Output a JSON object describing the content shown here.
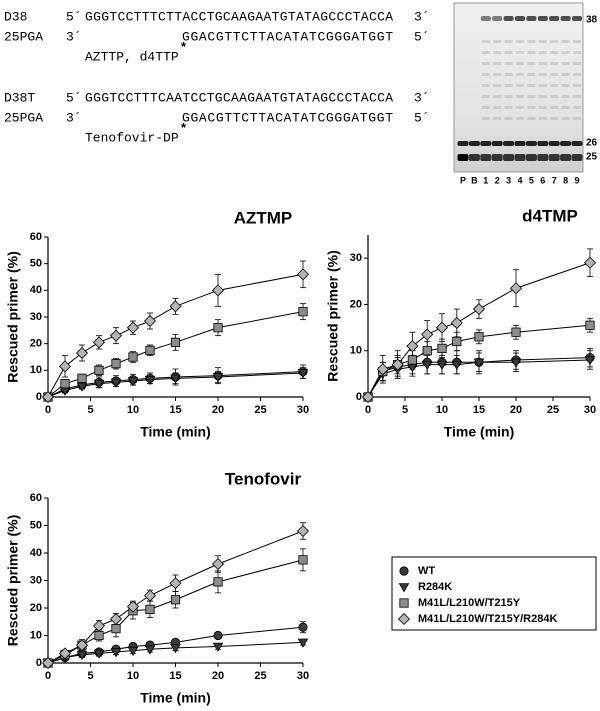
{
  "sequences": [
    {
      "template": {
        "name": "D38",
        "end5": "5´",
        "seq": "GGGTCCTTTCTTACCTGCAAGAATGTATAGCCCTACCA",
        "end3": "3´"
      },
      "primer": {
        "name": "25PGA",
        "end3": "3´",
        "seq": "GGACGTTCTTACATATCGGGATGGT",
        "end5": "5´"
      },
      "substrate": "AZTTP, d4TTP",
      "mark": "*"
    },
    {
      "template": {
        "name": "D38T",
        "end5": "5´",
        "seq": "GGGTCCTTTCAATCCTGCAAGAATGTATAGCCCTACCA",
        "end3": "3´"
      },
      "primer": {
        "name": "25PGA",
        "end3": "3´",
        "seq": "GGACGTTCTTACATATCGGGATGGT",
        "end5": "5´"
      },
      "substrate": "Tenofovir-DP",
      "mark": "*"
    }
  ],
  "gel": {
    "lanes": [
      "P",
      "B",
      "1",
      "2",
      "3",
      "4",
      "5",
      "6",
      "7",
      "8",
      "9"
    ],
    "markers": [
      "38",
      "26",
      "25"
    ]
  },
  "chart_data": [
    {
      "type": "line",
      "title": "AZTMP",
      "xlabel": "Time (min)",
      "ylabel": "Rescued primer (%)",
      "x": [
        0,
        2,
        4,
        6,
        8,
        10,
        12,
        15,
        20,
        30
      ],
      "xlim": [
        0,
        30
      ],
      "xticks": [
        0,
        5,
        10,
        15,
        20,
        25,
        30
      ],
      "ylim": [
        0,
        60
      ],
      "yticks": [
        0,
        10,
        20,
        30,
        40,
        50,
        60
      ],
      "series": [
        {
          "name": "WT",
          "color": "#3a3a3a",
          "marker": "circle",
          "values": [
            0,
            3,
            4.5,
            5.5,
            6,
            6.5,
            7,
            7.5,
            8,
            9.5
          ],
          "errors": [
            0,
            1,
            1.5,
            2,
            2,
            2,
            2,
            3,
            3,
            2.5
          ]
        },
        {
          "name": "R284K",
          "color": "#3a3a3a",
          "marker": "triangle-down",
          "values": [
            0,
            2.5,
            4,
            5,
            5.5,
            6,
            6.5,
            7,
            7.5,
            9
          ],
          "errors": [
            0,
            1,
            1,
            1.5,
            1.5,
            1.5,
            1.5,
            2,
            2,
            2
          ]
        },
        {
          "name": "M41L/L210W/T215Y",
          "color": "#8c8c8c",
          "marker": "square",
          "values": [
            0,
            5,
            7,
            10,
            12.5,
            15,
            17.5,
            20.5,
            26,
            32
          ],
          "errors": [
            0,
            1.5,
            1.5,
            2,
            2,
            2,
            2,
            3,
            3,
            3
          ]
        },
        {
          "name": "M41L/L210W/T215Y/R284K",
          "color": "#b4b4b4",
          "marker": "diamond",
          "values": [
            0,
            11.5,
            16.5,
            20.5,
            23,
            26,
            28.5,
            34,
            40,
            46
          ],
          "errors": [
            0,
            4,
            3,
            2.5,
            3,
            2.5,
            3,
            3,
            6,
            5
          ]
        }
      ]
    },
    {
      "type": "line",
      "title": "d4TMP",
      "xlabel": "Time (min)",
      "ylabel": "Rescued primer (%)",
      "x": [
        0,
        2,
        4,
        6,
        8,
        10,
        12,
        15,
        20,
        30
      ],
      "xlim": [
        0,
        30
      ],
      "xticks": [
        0,
        5,
        10,
        15,
        20,
        25,
        30
      ],
      "ylim": [
        0,
        35
      ],
      "yticks": [
        0,
        10,
        20,
        30
      ],
      "series": [
        {
          "name": "WT",
          "color": "#3a3a3a",
          "marker": "circle",
          "values": [
            0,
            5.5,
            6.5,
            7,
            7.5,
            7.5,
            7.5,
            7.5,
            8,
            8.5
          ],
          "errors": [
            0,
            2,
            2,
            2,
            2.5,
            2.5,
            2.5,
            2.5,
            2,
            2
          ]
        },
        {
          "name": "R284K",
          "color": "#3a3a3a",
          "marker": "triangle-down",
          "values": [
            0,
            5,
            6,
            6.5,
            7,
            7,
            7,
            7.5,
            7.5,
            8
          ],
          "errors": [
            0,
            1.5,
            1.5,
            2,
            2,
            2,
            2,
            2,
            2,
            2
          ]
        },
        {
          "name": "M41L/L210W/T215Y",
          "color": "#8c8c8c",
          "marker": "square",
          "values": [
            0,
            5.5,
            7,
            8,
            10,
            10.5,
            12,
            13,
            14,
            15.5
          ],
          "errors": [
            0,
            2,
            2,
            2,
            2,
            2,
            2,
            1.5,
            1.5,
            1.5
          ]
        },
        {
          "name": "M41L/L210W/T215Y/R284K",
          "color": "#b4b4b4",
          "marker": "diamond",
          "values": [
            0,
            6,
            7,
            11,
            13.5,
            15,
            16,
            19,
            23.5,
            29
          ],
          "errors": [
            0,
            3,
            3,
            3,
            3,
            3,
            3,
            2,
            4,
            3
          ]
        }
      ]
    },
    {
      "type": "line",
      "title": "Tenofovir",
      "xlabel": "Time (min)",
      "ylabel": "Rescued primer (%)",
      "x": [
        0,
        2,
        4,
        6,
        8,
        10,
        12,
        15,
        20,
        30
      ],
      "xlim": [
        0,
        30
      ],
      "xticks": [
        0,
        5,
        10,
        15,
        20,
        25,
        30
      ],
      "ylim": [
        0,
        60
      ],
      "yticks": [
        0,
        10,
        20,
        30,
        40,
        50,
        60
      ],
      "series": [
        {
          "name": "WT",
          "color": "#3a3a3a",
          "marker": "circle",
          "values": [
            0,
            2,
            3.5,
            4,
            5,
            6,
            6.5,
            7.5,
            10,
            13
          ],
          "errors": [
            0,
            1,
            1,
            1,
            1,
            1,
            1,
            1,
            1,
            2
          ]
        },
        {
          "name": "R284K",
          "color": "#3a3a3a",
          "marker": "triangle-down",
          "values": [
            0,
            2,
            3,
            3.5,
            4,
            4.5,
            5,
            5.5,
            6,
            7.5
          ],
          "errors": [
            0,
            1,
            1,
            1,
            1,
            1,
            1,
            1,
            1,
            1
          ]
        },
        {
          "name": "M41L/L210W/T215Y",
          "color": "#8c8c8c",
          "marker": "square",
          "values": [
            0,
            3,
            6.5,
            10,
            12.5,
            19,
            19.5,
            23,
            29.5,
            37.5
          ],
          "errors": [
            0,
            1,
            2,
            2,
            3,
            3,
            3,
            3,
            4,
            4
          ]
        },
        {
          "name": "M41L/L210W/T215Y/R284K",
          "color": "#b4b4b4",
          "marker": "diamond",
          "values": [
            0,
            3.5,
            6.5,
            13.5,
            16,
            20.5,
            24.5,
            29,
            36,
            48
          ],
          "errors": [
            0,
            1,
            1,
            2,
            2,
            2,
            2,
            3,
            3,
            3
          ]
        }
      ]
    }
  ]
}
